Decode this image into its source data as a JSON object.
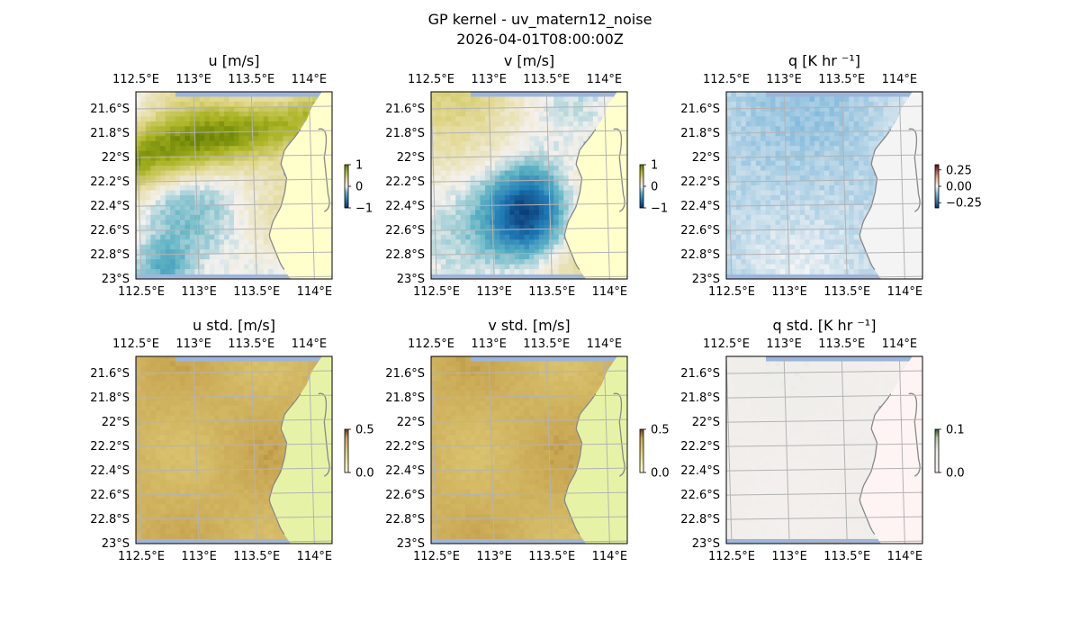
{
  "figure": {
    "title": "GP kernel - uv_matern12_noise",
    "subtitle": "2026-04-01T08:00:00Z"
  },
  "chart_data": [
    {
      "type": "heatmap",
      "title": "u [m/s]",
      "x_ticks": [
        "112.5°E",
        "113°E",
        "113.5°E",
        "114°E"
      ],
      "y_ticks": [
        "21.6°S",
        "21.8°S",
        "22°S",
        "22.2°S",
        "22.4°S",
        "22.6°S",
        "22.8°S",
        "23°S"
      ],
      "colorbar": {
        "ticks": [
          "1",
          "0",
          "−1"
        ],
        "range": [
          -1,
          1
        ]
      },
      "cmap": "brown-yellow-teal",
      "field": "smooth positive ridge in the north, negative patches in the south-west"
    },
    {
      "type": "heatmap",
      "title": "v [m/s]",
      "x_ticks": [
        "112.5°E",
        "113°E",
        "113.5°E",
        "114°E"
      ],
      "y_ticks": [
        "21.6°S",
        "21.8°S",
        "22°S",
        "22.2°S",
        "22.4°S",
        "22.6°S",
        "22.8°S",
        "23°S"
      ],
      "colorbar": {
        "ticks": [
          "1",
          "0",
          "−1"
        ],
        "range": [
          -1,
          1
        ]
      },
      "cmap": "brown-yellow-teal",
      "field": "strong negative core around 113.3°E 22.4°S"
    },
    {
      "type": "heatmap",
      "title": "q [K hr ⁻¹]",
      "x_ticks": [
        "112.5°E",
        "113°E",
        "113.5°E",
        "114°E"
      ],
      "y_ticks": [
        "21.6°S",
        "21.8°S",
        "22°S",
        "22.2°S",
        "22.4°S",
        "22.6°S",
        "22.8°S",
        "23°S"
      ],
      "colorbar": {
        "ticks": [
          "0.25",
          "0.00",
          "−0.25"
        ],
        "range": [
          -0.35,
          0.35
        ]
      },
      "cmap": "red-white-blue",
      "field": "near zero everywhere, slightly negative offshore"
    },
    {
      "type": "heatmap",
      "title": "u std. [m/s]",
      "x_ticks": [
        "112.5°E",
        "113°E",
        "113.5°E",
        "114°E"
      ],
      "y_ticks": [
        "21.6°S",
        "21.8°S",
        "22°S",
        "22.2°S",
        "22.4°S",
        "22.6°S",
        "22.8°S",
        "23°S"
      ],
      "colorbar": {
        "ticks": [
          "0.5",
          "0.0"
        ],
        "range": [
          0,
          0.6
        ]
      },
      "cmap": "yellow-green-brown",
      "field": "uniform about 0.4 m/s"
    },
    {
      "type": "heatmap",
      "title": "v std. [m/s]",
      "x_ticks": [
        "112.5°E",
        "113°E",
        "113.5°E",
        "114°E"
      ],
      "y_ticks": [
        "21.6°S",
        "21.8°S",
        "22°S",
        "22.2°S",
        "22.4°S",
        "22.6°S",
        "22.8°S",
        "23°S"
      ],
      "colorbar": {
        "ticks": [
          "0.5",
          "0.0"
        ],
        "range": [
          0,
          0.6
        ]
      },
      "cmap": "yellow-green-brown",
      "field": "uniform about 0.4 m/s"
    },
    {
      "type": "heatmap",
      "title": "q std. [K hr ⁻¹]",
      "x_ticks": [
        "112.5°E",
        "113°E",
        "113.5°E",
        "114°E"
      ],
      "y_ticks": [
        "21.6°S",
        "21.8°S",
        "22°S",
        "22.2°S",
        "22.4°S",
        "22.6°S",
        "22.8°S",
        "23°S"
      ],
      "colorbar": {
        "ticks": [
          "0.1",
          "0.0"
        ],
        "range": [
          0,
          0.12
        ]
      },
      "cmap": "pink-white-green",
      "field": "uniform small values"
    }
  ],
  "colors": {
    "ocean_edge": "#9db5dc",
    "land_yellow": "#ffffcc",
    "land_green": "#e6f3a6",
    "land_pink": "#fff4f4",
    "coastline": "#888888",
    "grid": "#b3b3b3"
  }
}
